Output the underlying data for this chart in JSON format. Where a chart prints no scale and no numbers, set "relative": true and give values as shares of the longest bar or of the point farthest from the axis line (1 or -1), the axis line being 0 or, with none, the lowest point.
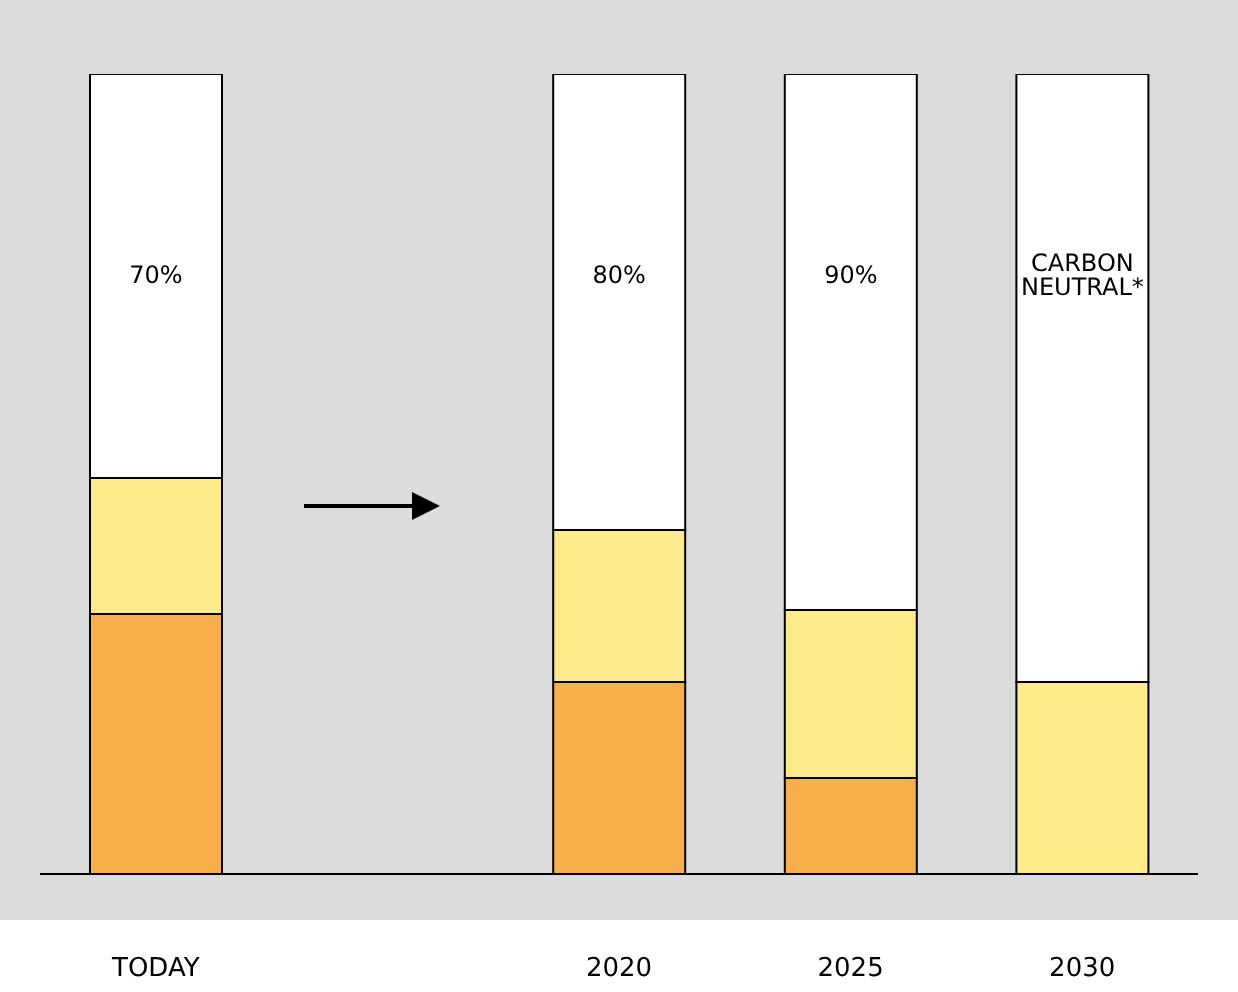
{
  "chart_data": {
    "type": "bar",
    "stacked": true,
    "relative": true,
    "categories": [
      "TODAY",
      null,
      "2020",
      "2025",
      "2030"
    ],
    "series": [
      {
        "color": "#f9ae4c",
        "values": [
          0.325,
          null,
          0.24,
          0.12,
          null
        ]
      },
      {
        "color": "#fdea8a",
        "values": [
          0.17,
          null,
          0.19,
          0.21,
          0.24
        ]
      },
      {
        "color": "#ffffff",
        "values": [
          0.505,
          null,
          0.57,
          0.67,
          0.76
        ]
      }
    ],
    "annotations": [
      "70%",
      "80%",
      "90%",
      "CARBON NEUTRAL*"
    ],
    "grid": false,
    "legend": false
  }
}
